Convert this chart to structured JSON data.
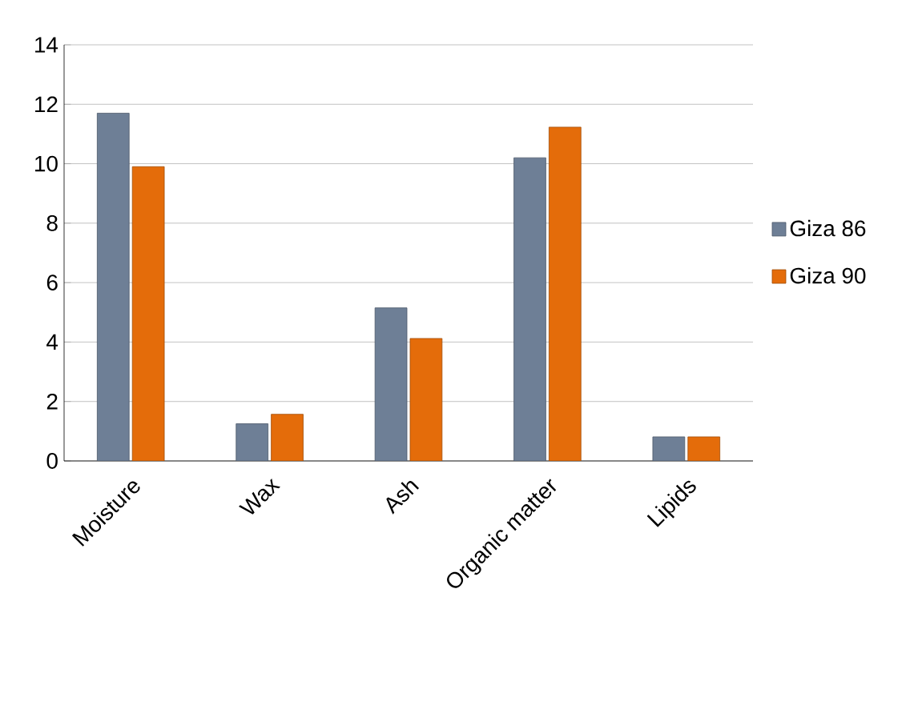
{
  "chart_data": {
    "type": "bar",
    "categories": [
      "Moisture",
      "Wax",
      "Ash",
      "Organic matter",
      "Lipids"
    ],
    "series": [
      {
        "name": "Giza 86",
        "color": "#6e7f96",
        "values": [
          11.7,
          1.25,
          5.15,
          10.2,
          0.81
        ]
      },
      {
        "name": "Giza 90",
        "color": "#e46c0a",
        "values": [
          9.9,
          1.57,
          4.12,
          11.23,
          0.81
        ]
      }
    ],
    "ylim": [
      0,
      14
    ],
    "yticks": [
      0,
      2,
      4,
      6,
      8,
      10,
      12,
      14
    ],
    "grid": "y",
    "legend": "right"
  }
}
